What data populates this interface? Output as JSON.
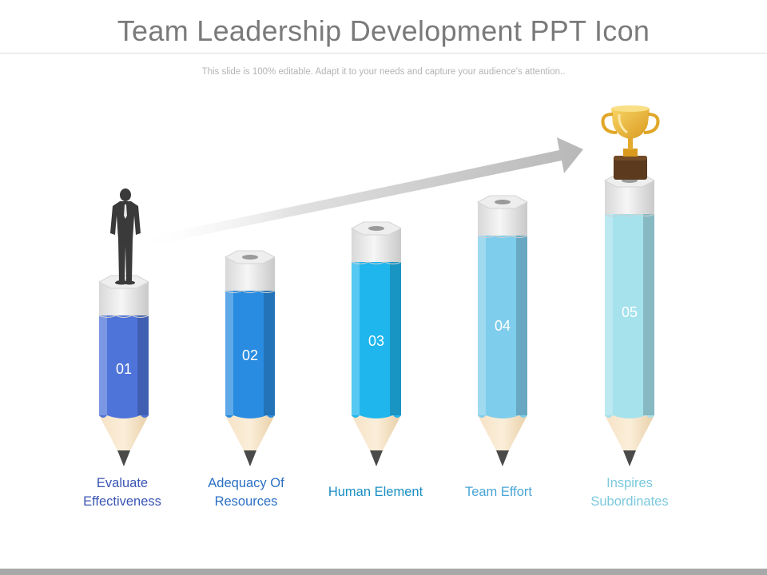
{
  "title": "Team Leadership Development PPT Icon",
  "subtitle": "This slide is 100% editable. Adapt it to your needs and capture your audience's attention..",
  "steps": [
    {
      "number": "01",
      "label_line1": "Evaluate",
      "label_line2": "Effectiveness",
      "color": "#4f74d9",
      "label_color": "#3a55b5"
    },
    {
      "number": "02",
      "label_line1": "Adequacy Of",
      "label_line2": "Resources",
      "color": "#2a8ce0",
      "label_color": "#2a6fc4"
    },
    {
      "number": "03",
      "label_line1": "Human Element",
      "label_line2": "",
      "color": "#1fb6ee",
      "label_color": "#1a8fc4"
    },
    {
      "number": "04",
      "label_line1": "Team Effort",
      "label_line2": "",
      "color": "#7fcdec",
      "label_color": "#4aa6d6"
    },
    {
      "number": "05",
      "label_line1": "Inspires",
      "label_line2": "Subordinates",
      "color": "#a5e2ec",
      "label_color": "#7cc9dd"
    }
  ],
  "icons": {
    "person": "businessman-icon",
    "trophy": "trophy-icon",
    "arrow": "growth-arrow-icon"
  }
}
